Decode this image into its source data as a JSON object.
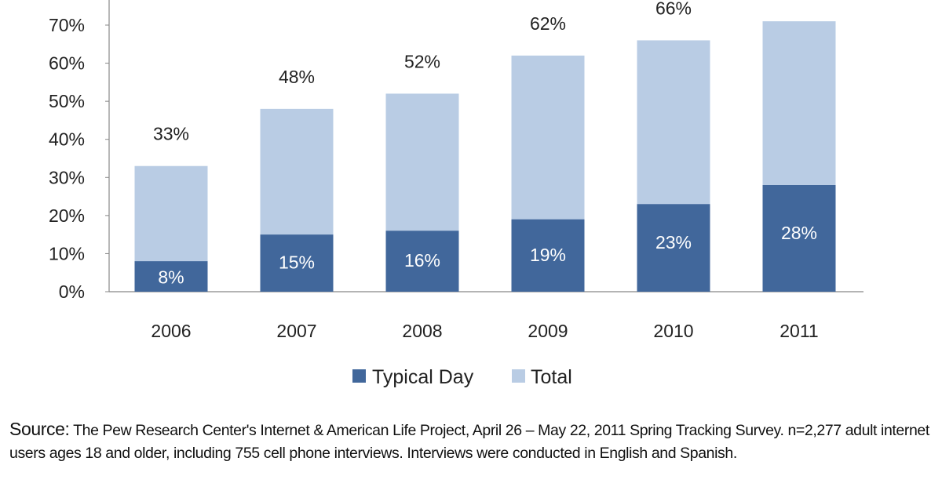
{
  "chart_data": {
    "type": "bar",
    "stacked": "overlay",
    "categories": [
      "2006",
      "2007",
      "2008",
      "2009",
      "2010",
      "2011"
    ],
    "series": [
      {
        "name": "Typical Day",
        "values": [
          8,
          15,
          16,
          19,
          23,
          28
        ],
        "color": "#41679b"
      },
      {
        "name": "Total",
        "values": [
          33,
          48,
          52,
          62,
          66,
          71
        ],
        "color": "#b9cce4"
      }
    ],
    "data_labels": {
      "Typical Day": [
        "8%",
        "15%",
        "16%",
        "19%",
        "23%",
        "28%"
      ],
      "Total": [
        "33%",
        "48%",
        "52%",
        "62%",
        "66%",
        ""
      ]
    },
    "yticks": [
      "0%",
      "10%",
      "20%",
      "30%",
      "40%",
      "50%",
      "60%",
      "70%"
    ],
    "ylim": [
      0,
      70
    ],
    "grid": false,
    "legend_position": "bottom"
  },
  "source": {
    "label": "Source:",
    "text": "The Pew Research Center's Internet & American Life Project, April 26 – May 22, 2011 Spring Tracking Survey. n=2,277 adult internet users ages 18 and older, including 755 cell phone interviews. Interviews were conducted in English and Spanish."
  }
}
